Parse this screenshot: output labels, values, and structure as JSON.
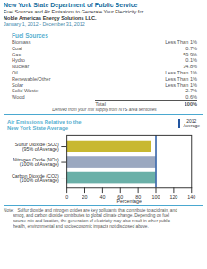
{
  "chart_data": {
    "type": "bar",
    "orientation": "horizontal",
    "header": [
      "New York State Department of Public Service",
      "Fuel Sources and Air Emissions to Generate Your Electricity for",
      "Noble Americas Energy Solutions LLC.",
      "January 1, 2012 - December 31, 2012"
    ],
    "table": {
      "title": "Fuel Sources",
      "rows": [
        [
          "Biomass",
          "Less Than 1%"
        ],
        [
          "Coal",
          "0.7%"
        ],
        [
          "Gas",
          "59.9%"
        ],
        [
          "Hydro",
          "0.1%"
        ],
        [
          "Nuclear",
          "34.8%"
        ],
        [
          "Oil",
          "Less Than 1%"
        ],
        [
          "Renewable/Other",
          "Less Than 1%"
        ],
        [
          "Solar",
          "Less Than 1%"
        ],
        [
          "Solid Waste",
          "2.7%"
        ],
        [
          "Wood",
          "0.6%"
        ]
      ],
      "total": [
        "Total",
        "100%"
      ],
      "footnote": "Derived from your mix supply from NYS area territories"
    },
    "title": "Air Emissions Relative to the\nNew York State Average",
    "categories": [
      "Sulfur Dioxide (SO2)\n(95% of Average)",
      "Nitrogen Oxide (NOx)\n(100% of Average)",
      "Carbon Dioxide (CO2)\n(100% of Average)"
    ],
    "values": [
      95,
      100,
      100
    ],
    "colors": [
      "#c8b830",
      "#9ba8c0",
      "#6ab0a8"
    ],
    "avg_line": {
      "value": 100,
      "label": "2012\nAverage",
      "color": "#2255a0"
    },
    "xlabel": "Percentage",
    "xlim": [
      0,
      140
    ],
    "xticks": [
      0,
      20,
      40,
      60,
      80,
      100,
      120,
      140
    ],
    "grid": false,
    "notes": "Note:   Sulfur dioxide and nitrogen oxides are key pollutants that contribute to acid rain, and\n        smog, and carbon dioxide contributes to global climate change. Depending on fuel\n        source mix and location, the generation of electricity may also result in other public\n        health, environmental and socioeconomic impacts not disclosed above."
  }
}
